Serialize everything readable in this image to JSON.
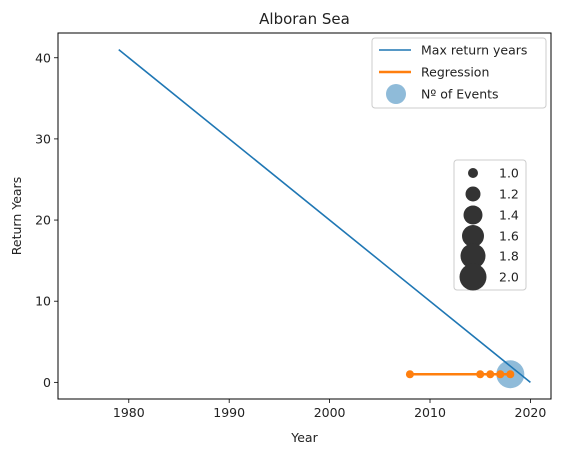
{
  "chart_data": {
    "type": "line",
    "title": "Alboran Sea",
    "xlabel": "Year",
    "ylabel": "Return Years",
    "xlim": [
      1972.95,
      2022.05
    ],
    "ylim": [
      -2.05,
      43.05
    ],
    "x_ticks": [
      1980,
      1990,
      2000,
      2010,
      2020
    ],
    "y_ticks": [
      0,
      10,
      20,
      30,
      40
    ],
    "grid": false,
    "colors": {
      "max_return": "#1f77b4",
      "regression": "#ff7f0e",
      "events": "#1f77b4",
      "size_legend": "#333333"
    },
    "series": [
      {
        "name": "Max return years",
        "type": "line",
        "x": [
          1979,
          2020
        ],
        "y": [
          41,
          0
        ]
      },
      {
        "name": "Regression",
        "type": "line-markers",
        "x": [
          2008,
          2015,
          2016,
          2017,
          2018
        ],
        "y": [
          1,
          1,
          1,
          1,
          1
        ]
      },
      {
        "name": "Nº of Events",
        "type": "scatter",
        "x": [
          2018
        ],
        "y": [
          1
        ],
        "size_value": [
          2.0
        ]
      }
    ],
    "legend": {
      "placement": "top-right",
      "entries": [
        "Max return years",
        "Regression",
        "Nº of Events"
      ]
    },
    "size_legend": {
      "placement": "center-right",
      "values": [
        "1.0",
        "1.2",
        "1.4",
        "1.6",
        "1.8",
        "2.0"
      ]
    }
  }
}
